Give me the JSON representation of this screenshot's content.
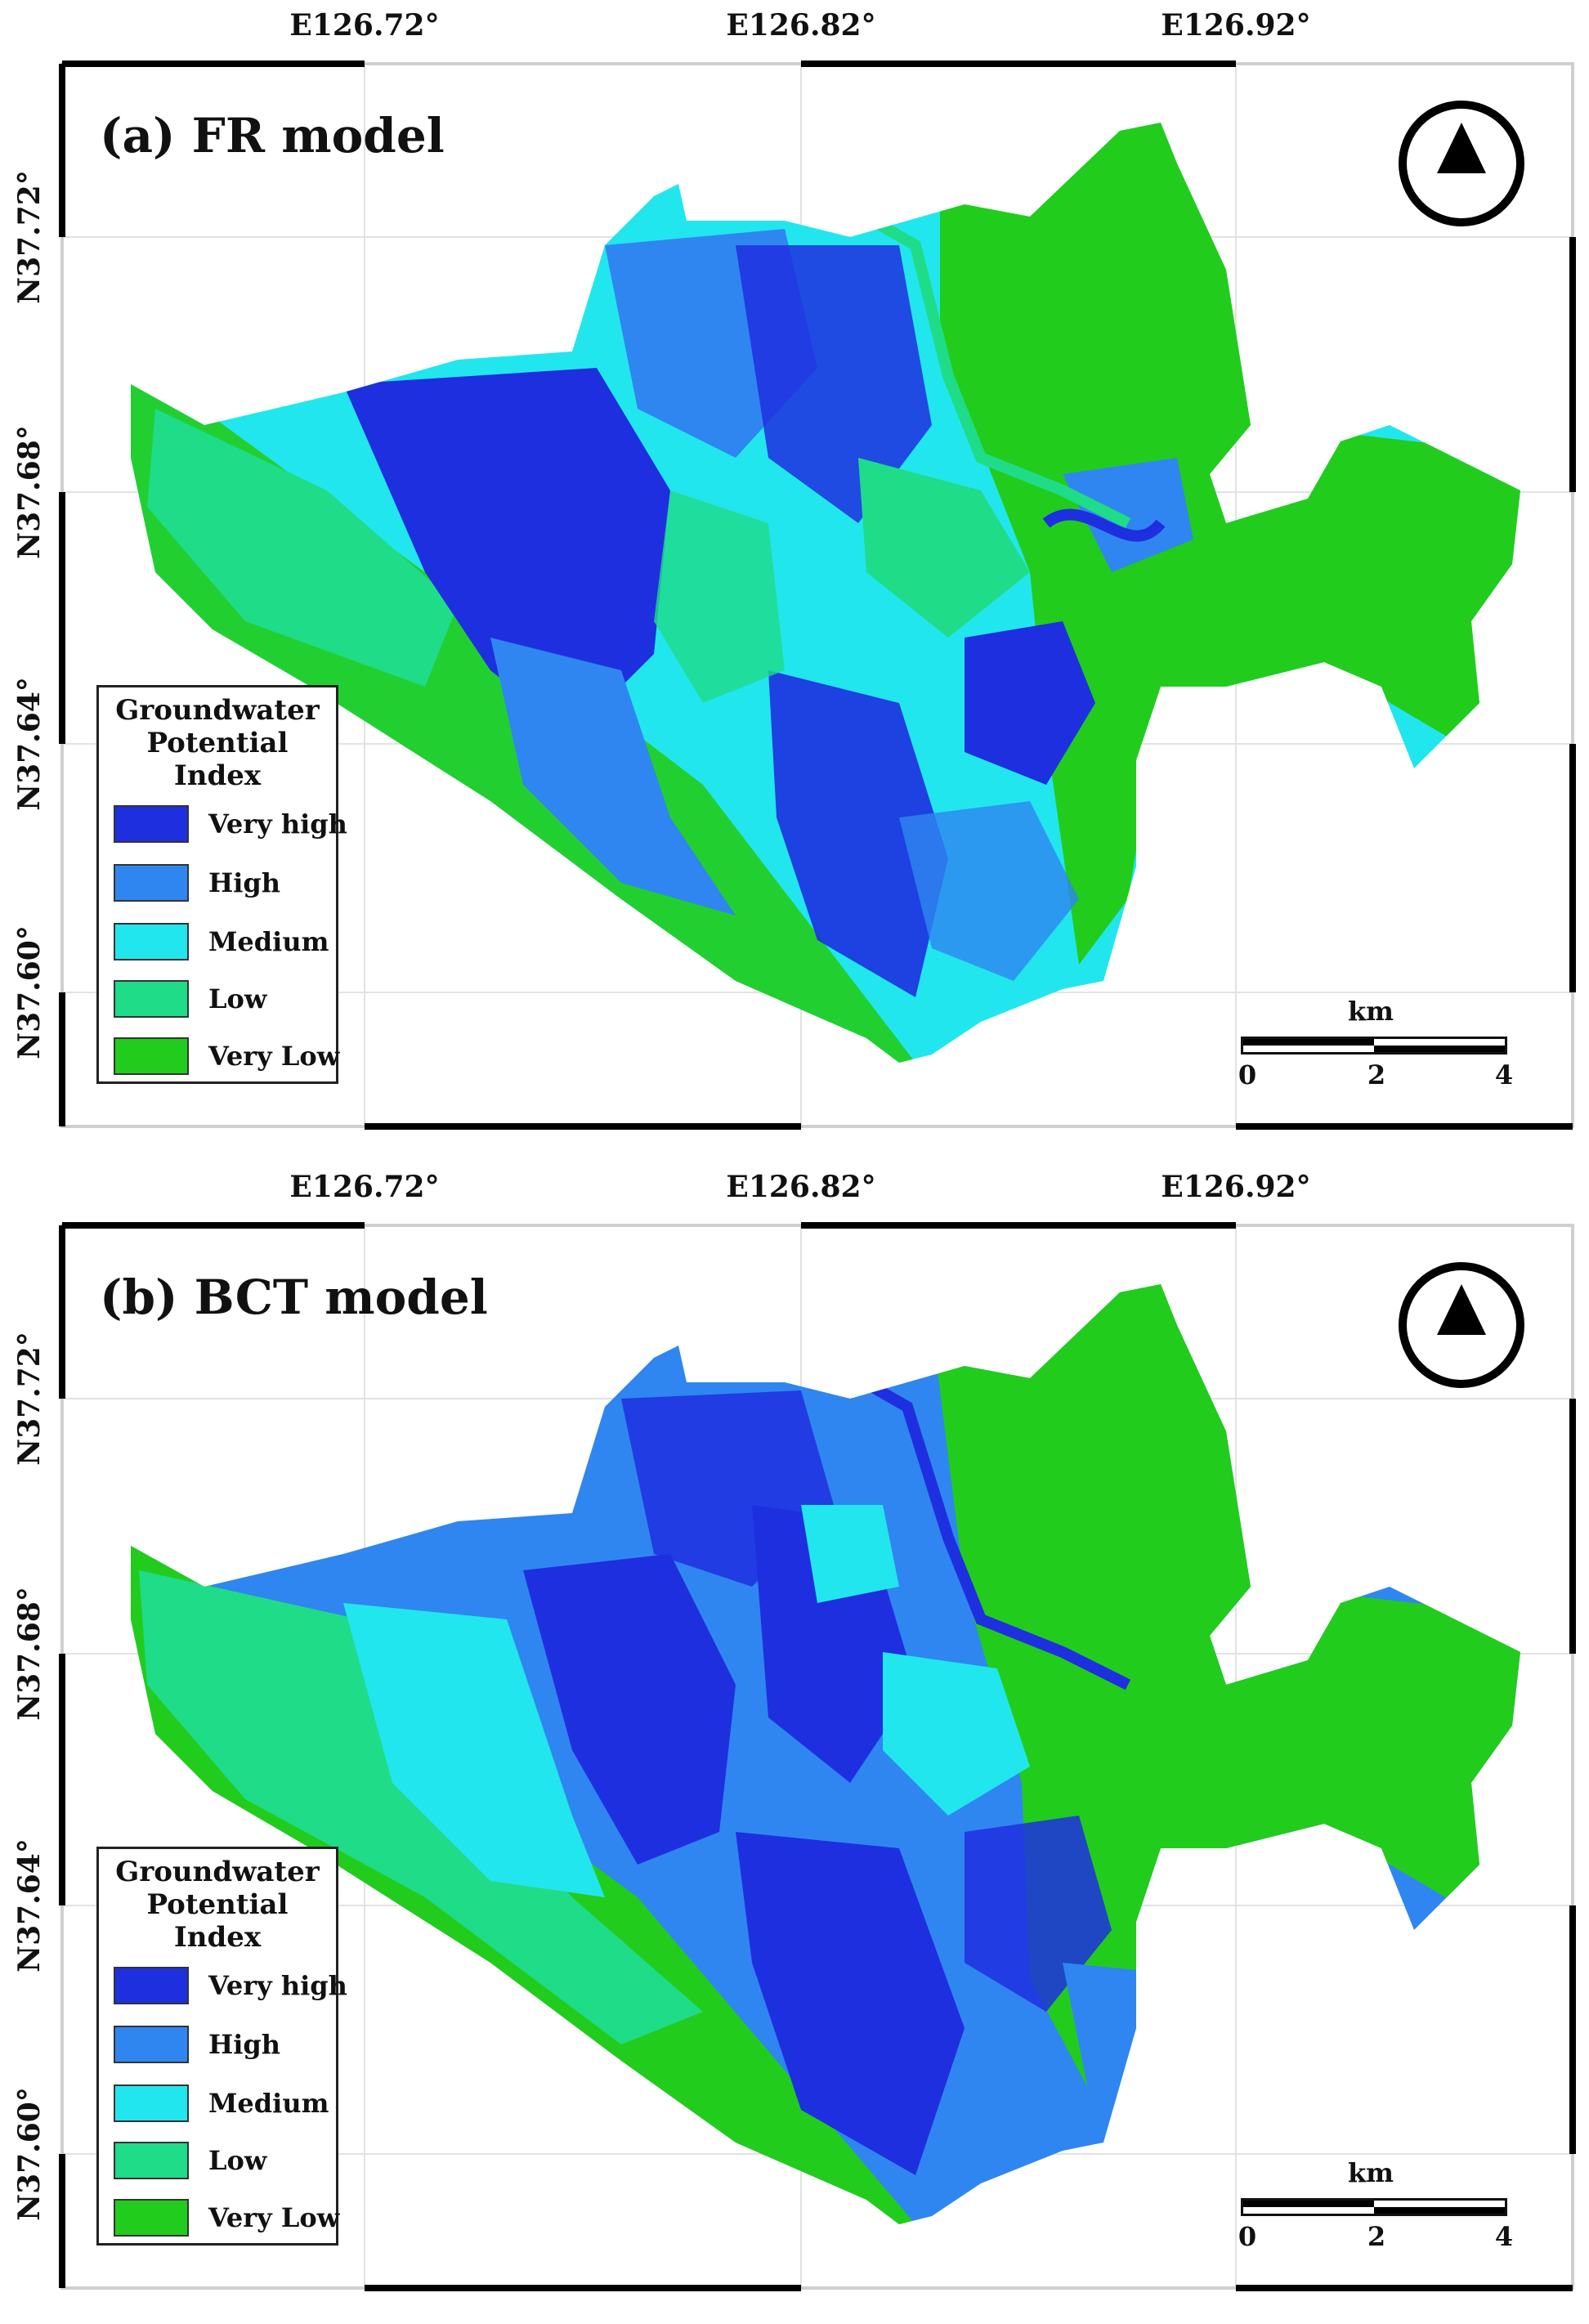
{
  "colors": {
    "very_high": "#1e2fe0",
    "high": "#2f86f0",
    "medium": "#22e6ee",
    "low": "#1fdc88",
    "very_low": "#22cc1c"
  },
  "icons": {
    "north_arrow": "north-arrow-icon"
  },
  "panels": [
    {
      "title": "(a) FR model",
      "longitude_labels": [
        "E126.72°",
        "E126.82°",
        "E126.92°"
      ],
      "latitude_labels": [
        "N37.72°",
        "N37.68°",
        "N37.64°",
        "N37.60°"
      ],
      "legend": {
        "title": "Groundwater Potential Index",
        "items": [
          {
            "label": "Very high",
            "class": "very_high"
          },
          {
            "label": "High",
            "class": "high"
          },
          {
            "label": "Medium",
            "class": "medium"
          },
          {
            "label": "Low",
            "class": "low"
          },
          {
            "label": "Very Low",
            "class": "very_low"
          }
        ]
      },
      "scale": {
        "unit": "km",
        "ticks": [
          "0",
          "2",
          "4"
        ]
      }
    },
    {
      "title": "(b) BCT model",
      "longitude_labels": [
        "E126.72°",
        "E126.82°",
        "E126.92°"
      ],
      "latitude_labels": [
        "N37.72°",
        "N37.68°",
        "N37.64°",
        "N37.60°"
      ],
      "legend": {
        "title": "Groundwater Potential Index",
        "items": [
          {
            "label": "Very high",
            "class": "very_high"
          },
          {
            "label": "High",
            "class": "high"
          },
          {
            "label": "Medium",
            "class": "medium"
          },
          {
            "label": "Low",
            "class": "low"
          },
          {
            "label": "Very Low",
            "class": "very_low"
          }
        ]
      },
      "scale": {
        "unit": "km",
        "ticks": [
          "0",
          "2",
          "4"
        ]
      }
    }
  ]
}
